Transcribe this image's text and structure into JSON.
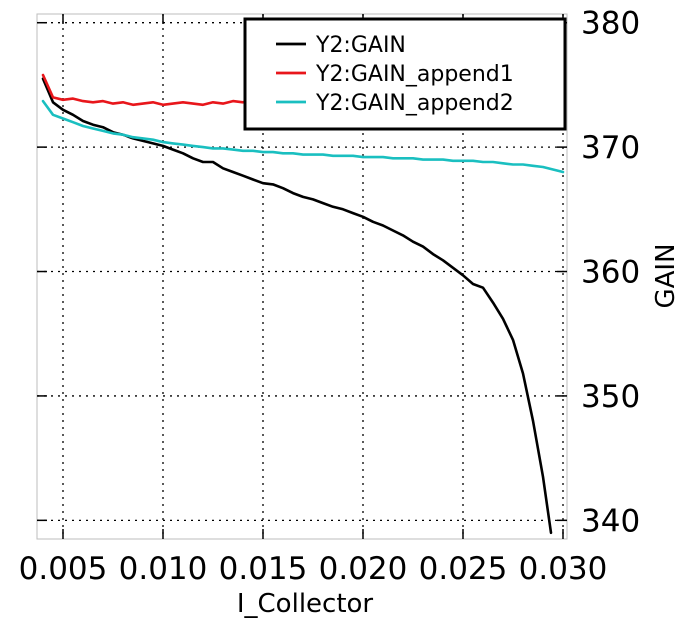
{
  "chart_data": {
    "type": "line",
    "xlabel": "I_Collector",
    "ylabel": "GAIN",
    "xlim": [
      0.0037,
      0.0302
    ],
    "ylim": [
      338.5,
      380.7
    ],
    "x_ticks": [
      "0.005",
      "0.010",
      "0.015",
      "0.020",
      "0.025",
      "0.030"
    ],
    "y_ticks": [
      "340",
      "350",
      "360",
      "370",
      "380"
    ],
    "y_axis_side": "right",
    "grid": true,
    "legend_position": "top-right",
    "series": [
      {
        "name": "Y2:GAIN",
        "color": "#000000",
        "points": [
          [
            0.004,
            375.5
          ],
          [
            0.0045,
            373.6
          ],
          [
            0.005,
            373.0
          ],
          [
            0.0055,
            372.6
          ],
          [
            0.006,
            372.1
          ],
          [
            0.0065,
            371.8
          ],
          [
            0.007,
            371.6
          ],
          [
            0.0075,
            371.2
          ],
          [
            0.008,
            371.0
          ],
          [
            0.0085,
            370.7
          ],
          [
            0.009,
            370.5
          ],
          [
            0.0095,
            370.3
          ],
          [
            0.01,
            370.1
          ],
          [
            0.0105,
            369.8
          ],
          [
            0.011,
            369.5
          ],
          [
            0.0115,
            369.1
          ],
          [
            0.012,
            368.8
          ],
          [
            0.0125,
            368.8
          ],
          [
            0.013,
            368.3
          ],
          [
            0.0135,
            368.0
          ],
          [
            0.014,
            367.7
          ],
          [
            0.0145,
            367.4
          ],
          [
            0.015,
            367.1
          ],
          [
            0.0155,
            367.0
          ],
          [
            0.016,
            366.7
          ],
          [
            0.0165,
            366.3
          ],
          [
            0.017,
            366.0
          ],
          [
            0.0175,
            365.8
          ],
          [
            0.018,
            365.5
          ],
          [
            0.0185,
            365.2
          ],
          [
            0.019,
            365.0
          ],
          [
            0.0195,
            364.7
          ],
          [
            0.02,
            364.4
          ],
          [
            0.0205,
            364.0
          ],
          [
            0.021,
            363.7
          ],
          [
            0.0215,
            363.3
          ],
          [
            0.022,
            362.9
          ],
          [
            0.0225,
            362.4
          ],
          [
            0.023,
            362.0
          ],
          [
            0.0235,
            361.4
          ],
          [
            0.024,
            360.9
          ],
          [
            0.0245,
            360.3
          ],
          [
            0.025,
            359.7
          ],
          [
            0.0255,
            359.0
          ],
          [
            0.026,
            358.7
          ],
          [
            0.0265,
            357.5
          ],
          [
            0.027,
            356.2
          ],
          [
            0.0275,
            354.5
          ],
          [
            0.028,
            351.8
          ],
          [
            0.0285,
            348.0
          ],
          [
            0.029,
            343.5
          ],
          [
            0.0294,
            339.0
          ]
        ]
      },
      {
        "name": "Y2:GAIN_append1",
        "color": "#e8161b",
        "points": [
          [
            0.004,
            375.8
          ],
          [
            0.0045,
            374.0
          ],
          [
            0.005,
            373.8
          ],
          [
            0.0055,
            373.9
          ],
          [
            0.006,
            373.7
          ],
          [
            0.0065,
            373.6
          ],
          [
            0.007,
            373.7
          ],
          [
            0.0075,
            373.5
          ],
          [
            0.008,
            373.6
          ],
          [
            0.0085,
            373.4
          ],
          [
            0.009,
            373.5
          ],
          [
            0.0095,
            373.6
          ],
          [
            0.01,
            373.4
          ],
          [
            0.0105,
            373.5
          ],
          [
            0.011,
            373.6
          ],
          [
            0.0115,
            373.5
          ],
          [
            0.012,
            373.4
          ],
          [
            0.0125,
            373.6
          ],
          [
            0.013,
            373.5
          ],
          [
            0.0135,
            373.7
          ],
          [
            0.014,
            373.6
          ],
          [
            0.0145,
            373.8
          ],
          [
            0.015,
            373.9
          ],
          [
            0.0155,
            374.0
          ],
          [
            0.016,
            374.1
          ],
          [
            0.0165,
            374.2
          ],
          [
            0.017,
            374.4
          ],
          [
            0.0175,
            374.6
          ],
          [
            0.018,
            374.9
          ],
          [
            0.0185,
            375.0
          ],
          [
            0.019,
            375.2
          ],
          [
            0.0195,
            375.3
          ],
          [
            0.02,
            375.5
          ],
          [
            0.0205,
            375.6
          ],
          [
            0.021,
            375.8
          ],
          [
            0.0215,
            376.1
          ],
          [
            0.022,
            376.2
          ],
          [
            0.0225,
            376.4
          ],
          [
            0.023,
            376.5
          ],
          [
            0.0235,
            376.7
          ],
          [
            0.024,
            376.9
          ],
          [
            0.0245,
            377.1
          ],
          [
            0.025,
            377.3
          ],
          [
            0.0255,
            377.5
          ],
          [
            0.026,
            377.6
          ],
          [
            0.0265,
            377.8
          ],
          [
            0.027,
            378.0
          ],
          [
            0.0275,
            378.1
          ],
          [
            0.028,
            378.2
          ],
          [
            0.0285,
            378.3
          ],
          [
            0.029,
            378.4
          ],
          [
            0.0295,
            378.5
          ],
          [
            0.03,
            378.6
          ]
        ]
      },
      {
        "name": "Y2:GAIN_append2",
        "color": "#1abfc0",
        "points": [
          [
            0.004,
            373.7
          ],
          [
            0.0045,
            372.6
          ],
          [
            0.005,
            372.3
          ],
          [
            0.0055,
            372.0
          ],
          [
            0.006,
            371.7
          ],
          [
            0.0065,
            371.5
          ],
          [
            0.007,
            371.3
          ],
          [
            0.0075,
            371.1
          ],
          [
            0.008,
            371.0
          ],
          [
            0.0085,
            370.8
          ],
          [
            0.009,
            370.7
          ],
          [
            0.0095,
            370.6
          ],
          [
            0.01,
            370.4
          ],
          [
            0.0105,
            370.3
          ],
          [
            0.011,
            370.2
          ],
          [
            0.0115,
            370.1
          ],
          [
            0.012,
            370.0
          ],
          [
            0.0125,
            369.9
          ],
          [
            0.013,
            369.9
          ],
          [
            0.0135,
            369.8
          ],
          [
            0.014,
            369.7
          ],
          [
            0.0145,
            369.7
          ],
          [
            0.015,
            369.6
          ],
          [
            0.0155,
            369.6
          ],
          [
            0.016,
            369.5
          ],
          [
            0.0165,
            369.5
          ],
          [
            0.017,
            369.4
          ],
          [
            0.0175,
            369.4
          ],
          [
            0.018,
            369.4
          ],
          [
            0.0185,
            369.3
          ],
          [
            0.019,
            369.3
          ],
          [
            0.0195,
            369.3
          ],
          [
            0.02,
            369.2
          ],
          [
            0.0205,
            369.2
          ],
          [
            0.021,
            369.2
          ],
          [
            0.0215,
            369.1
          ],
          [
            0.022,
            369.1
          ],
          [
            0.0225,
            369.1
          ],
          [
            0.023,
            369.0
          ],
          [
            0.0235,
            369.0
          ],
          [
            0.024,
            369.0
          ],
          [
            0.0245,
            368.9
          ],
          [
            0.025,
            368.9
          ],
          [
            0.0255,
            368.9
          ],
          [
            0.026,
            368.8
          ],
          [
            0.0265,
            368.8
          ],
          [
            0.027,
            368.7
          ],
          [
            0.0275,
            368.6
          ],
          [
            0.028,
            368.6
          ],
          [
            0.0285,
            368.5
          ],
          [
            0.029,
            368.4
          ],
          [
            0.0295,
            368.2
          ],
          [
            0.03,
            368.0
          ]
        ]
      }
    ]
  }
}
